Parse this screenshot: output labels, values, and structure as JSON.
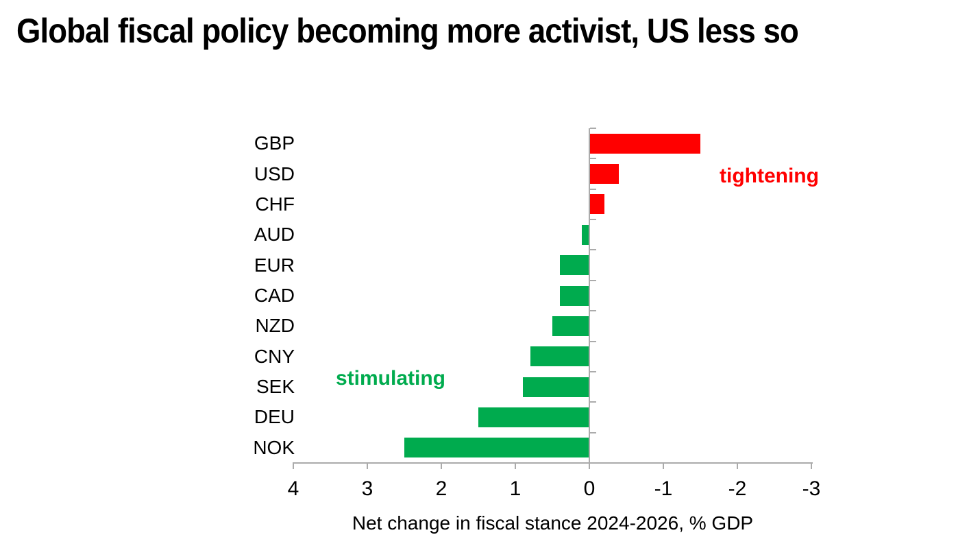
{
  "title": {
    "text": "Global fiscal policy becoming more activist, US less so"
  },
  "chart_data": {
    "type": "bar",
    "orientation": "horizontal",
    "title": "Global fiscal policy becoming more activist, US less so",
    "categories": [
      "GBP",
      "USD",
      "CHF",
      "AUD",
      "EUR",
      "CAD",
      "NZD",
      "CNY",
      "SEK",
      "DEU",
      "NOK"
    ],
    "values": [
      -1.5,
      -0.4,
      -0.2,
      0.1,
      0.4,
      0.4,
      0.5,
      0.8,
      0.9,
      1.5,
      2.5
    ],
    "xlabel": "Net change in fiscal stance 2024-2026, % GDP",
    "x_ticks": [
      "4",
      "3",
      "2",
      "1",
      "0",
      "-1",
      "-2",
      "-3"
    ],
    "x_tick_values": [
      4,
      3,
      2,
      1,
      0,
      -1,
      -2,
      -3
    ],
    "xlim": [
      4,
      -3
    ],
    "x_axis_reversed": true,
    "grid": false,
    "legend": false,
    "colors": {
      "positive_bar": "#00AB4E",
      "negative_bar": "#FF0000",
      "axis": "#ABABAB",
      "text": "#000000"
    },
    "annotations": [
      {
        "text": "tightening",
        "color": "#FF0000",
        "meaning": "negative values side"
      },
      {
        "text": "stimulating",
        "color": "#00AB4E",
        "meaning": "positive values side"
      }
    ]
  }
}
